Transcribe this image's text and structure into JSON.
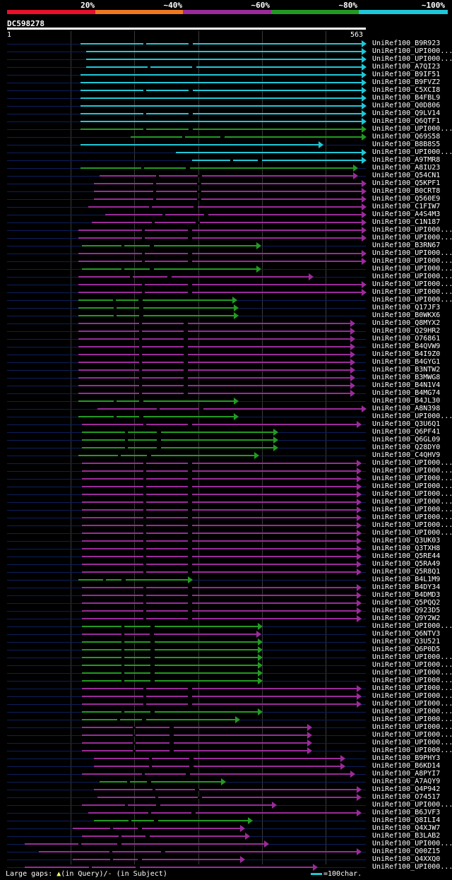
{
  "legend": {
    "labels": [
      "20%",
      "~40%",
      "~60%",
      "~80%",
      "~100%"
    ],
    "colors": [
      "#e8102a",
      "#f07820",
      "#9b2b9b",
      "#229b22",
      "#1ec8d8"
    ]
  },
  "query": {
    "name": "DC598278",
    "start": "1",
    "end": "563",
    "length": 563
  },
  "footer": {
    "text": "Large gaps:",
    "in_query": "(in Query)/",
    "in_subject": "(in Subject)",
    "scale": "=100char."
  },
  "hits": [
    {
      "label": "UniRef100_B9R923",
      "start": 115,
      "end": 563,
      "color": "#1ec8d8"
    },
    {
      "label": "UniRef100_UPI000...",
      "start": 124,
      "end": 563,
      "color": "#1ec8d8"
    },
    {
      "label": "UniRef100_UPI000...",
      "start": 124,
      "end": 563,
      "color": "#1ec8d8"
    },
    {
      "label": "UniRef100_A7QI23",
      "start": 124,
      "end": 563,
      "color": "#1ec8d8"
    },
    {
      "label": "UniRef100_B9IF51",
      "start": 115,
      "end": 563,
      "color": "#1ec8d8"
    },
    {
      "label": "UniRef100_B9FVZ2",
      "start": 115,
      "end": 563,
      "color": "#1ec8d8"
    },
    {
      "label": "UniRef100_C5XCI8",
      "start": 115,
      "end": 563,
      "color": "#1ec8d8"
    },
    {
      "label": "UniRef100_B4FBL9",
      "start": 115,
      "end": 563,
      "color": "#1ec8d8"
    },
    {
      "label": "UniRef100_Q0D806",
      "start": 115,
      "end": 563,
      "color": "#1ec8d8"
    },
    {
      "label": "UniRef100_Q9LV14",
      "start": 115,
      "end": 563,
      "color": "#1ec8d8"
    },
    {
      "label": "UniRef100_Q6QTF1",
      "start": 115,
      "end": 563,
      "color": "#1ec8d8"
    },
    {
      "label": "UniRef100_UPI000...",
      "start": 115,
      "end": 563,
      "color": "#229b22"
    },
    {
      "label": "UniRef100_Q69S58",
      "start": 194,
      "end": 563,
      "color": "#229b22"
    },
    {
      "label": "UniRef100_B8B8S5",
      "start": 115,
      "end": 495,
      "color": "#1ec8d8"
    },
    {
      "label": "UniRef100_UPI000...",
      "start": 265,
      "end": 563,
      "color": "#1ec8d8"
    },
    {
      "label": "UniRef100_A9TMR8",
      "start": 290,
      "end": 563,
      "color": "#1ec8d8"
    },
    {
      "label": "UniRef100_A8IU23",
      "start": 115,
      "end": 550,
      "color": "#229b22"
    },
    {
      "label": "UniRef100_Q54CN1",
      "start": 145,
      "end": 550,
      "color": "#9b2b9b"
    },
    {
      "label": "UniRef100_Q5KPF1",
      "start": 136,
      "end": 563,
      "color": "#9b2b9b"
    },
    {
      "label": "UniRef100_B0CRT8",
      "start": 136,
      "end": 563,
      "color": "#9b2b9b"
    },
    {
      "label": "UniRef100_Q560E9",
      "start": 136,
      "end": 563,
      "color": "#9b2b9b"
    },
    {
      "label": "UniRef100_C1FIW7",
      "start": 127,
      "end": 563,
      "color": "#9b2b9b"
    },
    {
      "label": "UniRef100_A4S4M3",
      "start": 154,
      "end": 563,
      "color": "#9b2b9b"
    },
    {
      "label": "UniRef100_C1N187",
      "start": 133,
      "end": 563,
      "color": "#9b2b9b"
    },
    {
      "label": "UniRef100_UPI000...",
      "start": 112,
      "end": 563,
      "color": "#9b2b9b"
    },
    {
      "label": "UniRef100_UPI000...",
      "start": 112,
      "end": 563,
      "color": "#9b2b9b"
    },
    {
      "label": "UniRef100_B3RN67",
      "start": 118,
      "end": 398,
      "color": "#229b22"
    },
    {
      "label": "UniRef100_UPI000...",
      "start": 112,
      "end": 563,
      "color": "#9b2b9b"
    },
    {
      "label": "UniRef100_UPI000...",
      "start": 112,
      "end": 563,
      "color": "#9b2b9b"
    },
    {
      "label": "UniRef100_UPI000...",
      "start": 118,
      "end": 398,
      "color": "#229b22"
    },
    {
      "label": "UniRef100_UPI000...",
      "start": 112,
      "end": 480,
      "color": "#9b2b9b"
    },
    {
      "label": "UniRef100_UPI000...",
      "start": 112,
      "end": 563,
      "color": "#9b2b9b"
    },
    {
      "label": "UniRef100_UPI000...",
      "start": 112,
      "end": 563,
      "color": "#9b2b9b"
    },
    {
      "label": "UniRef100_UPI000...",
      "start": 112,
      "end": 360,
      "color": "#229b22"
    },
    {
      "label": "UniRef100_Q17JF3",
      "start": 112,
      "end": 362,
      "color": "#229b22"
    },
    {
      "label": "UniRef100_B0WKX6",
      "start": 112,
      "end": 362,
      "color": "#229b22"
    },
    {
      "label": "UniRef100_Q8MYX2",
      "start": 112,
      "end": 545,
      "color": "#9b2b9b"
    },
    {
      "label": "UniRef100_Q29HR2",
      "start": 112,
      "end": 545,
      "color": "#9b2b9b"
    },
    {
      "label": "UniRef100_O76861",
      "start": 112,
      "end": 545,
      "color": "#9b2b9b"
    },
    {
      "label": "UniRef100_B4QVW9",
      "start": 112,
      "end": 545,
      "color": "#9b2b9b"
    },
    {
      "label": "UniRef100_B4I9Z0",
      "start": 112,
      "end": 545,
      "color": "#9b2b9b"
    },
    {
      "label": "UniRef100_B4GYG1",
      "start": 112,
      "end": 545,
      "color": "#9b2b9b"
    },
    {
      "label": "UniRef100_B3NTW2",
      "start": 112,
      "end": 545,
      "color": "#9b2b9b"
    },
    {
      "label": "UniRef100_B3MWG8",
      "start": 112,
      "end": 545,
      "color": "#9b2b9b"
    },
    {
      "label": "UniRef100_B4N1V4",
      "start": 112,
      "end": 545,
      "color": "#9b2b9b"
    },
    {
      "label": "UniRef100_B4MG74",
      "start": 112,
      "end": 545,
      "color": "#9b2b9b"
    },
    {
      "label": "UniRef100_B4JL30",
      "start": 112,
      "end": 362,
      "color": "#229b22"
    },
    {
      "label": "UniRef100_A8N398",
      "start": 142,
      "end": 563,
      "color": "#9b2b9b"
    },
    {
      "label": "UniRef100_UPI000...",
      "start": 112,
      "end": 362,
      "color": "#229b22"
    },
    {
      "label": "UniRef100_Q3U6Q1",
      "start": 118,
      "end": 555,
      "color": "#9b2b9b"
    },
    {
      "label": "UniRef100_Q6PF41",
      "start": 118,
      "end": 425,
      "color": "#229b22"
    },
    {
      "label": "UniRef100_Q6GL09",
      "start": 118,
      "end": 425,
      "color": "#229b22"
    },
    {
      "label": "UniRef100_Q28DY0",
      "start": 118,
      "end": 425,
      "color": "#229b22"
    },
    {
      "label": "UniRef100_C4QHV9",
      "start": 112,
      "end": 395,
      "color": "#229b22"
    },
    {
      "label": "UniRef100_UPI000...",
      "start": 118,
      "end": 555,
      "color": "#9b2b9b"
    },
    {
      "label": "UniRef100_UPI000...",
      "start": 118,
      "end": 555,
      "color": "#9b2b9b"
    },
    {
      "label": "UniRef100_UPI000...",
      "start": 118,
      "end": 555,
      "color": "#9b2b9b"
    },
    {
      "label": "UniRef100_UPI000...",
      "start": 118,
      "end": 555,
      "color": "#9b2b9b"
    },
    {
      "label": "UniRef100_UPI000...",
      "start": 118,
      "end": 555,
      "color": "#9b2b9b"
    },
    {
      "label": "UniRef100_UPI000...",
      "start": 118,
      "end": 555,
      "color": "#9b2b9b"
    },
    {
      "label": "UniRef100_UPI000...",
      "start": 118,
      "end": 555,
      "color": "#9b2b9b"
    },
    {
      "label": "UniRef100_UPI000...",
      "start": 118,
      "end": 555,
      "color": "#9b2b9b"
    },
    {
      "label": "UniRef100_UPI000...",
      "start": 118,
      "end": 555,
      "color": "#9b2b9b"
    },
    {
      "label": "UniRef100_UPI000...",
      "start": 118,
      "end": 555,
      "color": "#9b2b9b"
    },
    {
      "label": "UniRef100_Q3UK03",
      "start": 118,
      "end": 555,
      "color": "#9b2b9b"
    },
    {
      "label": "UniRef100_Q3TXH8",
      "start": 118,
      "end": 555,
      "color": "#9b2b9b"
    },
    {
      "label": "UniRef100_Q5RE44",
      "start": 118,
      "end": 555,
      "color": "#9b2b9b"
    },
    {
      "label": "UniRef100_Q5RA49",
      "start": 118,
      "end": 555,
      "color": "#9b2b9b"
    },
    {
      "label": "UniRef100_Q5R8Q1",
      "start": 118,
      "end": 555,
      "color": "#9b2b9b"
    },
    {
      "label": "UniRef100_B4L1M9",
      "start": 112,
      "end": 290,
      "color": "#229b22"
    },
    {
      "label": "UniRef100_B4DY34",
      "start": 118,
      "end": 555,
      "color": "#9b2b9b"
    },
    {
      "label": "UniRef100_B4DMD3",
      "start": 118,
      "end": 555,
      "color": "#9b2b9b"
    },
    {
      "label": "UniRef100_Q5PQQ2",
      "start": 118,
      "end": 555,
      "color": "#9b2b9b"
    },
    {
      "label": "UniRef100_Q923D5",
      "start": 118,
      "end": 555,
      "color": "#9b2b9b"
    },
    {
      "label": "UniRef100_Q9Y2W2",
      "start": 118,
      "end": 555,
      "color": "#9b2b9b"
    },
    {
      "label": "UniRef100_UPI000...",
      "start": 118,
      "end": 400,
      "color": "#229b22"
    },
    {
      "label": "UniRef100_Q6NTV3",
      "start": 118,
      "end": 398,
      "color": "#9b2b9b"
    },
    {
      "label": "UniRef100_Q3U521",
      "start": 118,
      "end": 400,
      "color": "#229b22"
    },
    {
      "label": "UniRef100_Q6P0D5",
      "start": 118,
      "end": 400,
      "color": "#229b22"
    },
    {
      "label": "UniRef100_UPI000...",
      "start": 118,
      "end": 400,
      "color": "#229b22"
    },
    {
      "label": "UniRef100_UPI000...",
      "start": 118,
      "end": 400,
      "color": "#229b22"
    },
    {
      "label": "UniRef100_UPI000...",
      "start": 118,
      "end": 400,
      "color": "#229b22"
    },
    {
      "label": "UniRef100_UPI000...",
      "start": 118,
      "end": 400,
      "color": "#229b22"
    },
    {
      "label": "UniRef100_UPI000...",
      "start": 118,
      "end": 555,
      "color": "#9b2b9b"
    },
    {
      "label": "UniRef100_UPI000...",
      "start": 118,
      "end": 555,
      "color": "#9b2b9b"
    },
    {
      "label": "UniRef100_UPI000...",
      "start": 118,
      "end": 555,
      "color": "#9b2b9b"
    },
    {
      "label": "UniRef100_UPI000...",
      "start": 118,
      "end": 400,
      "color": "#229b22"
    },
    {
      "label": "UniRef100_UPI000...",
      "start": 118,
      "end": 365,
      "color": "#229b22"
    },
    {
      "label": "UniRef100_UPI000...",
      "start": 118,
      "end": 478,
      "color": "#9b2b9b"
    },
    {
      "label": "UniRef100_UPI000...",
      "start": 118,
      "end": 478,
      "color": "#9b2b9b"
    },
    {
      "label": "UniRef100_UPI000...",
      "start": 118,
      "end": 478,
      "color": "#9b2b9b"
    },
    {
      "label": "UniRef100_UPI000...",
      "start": 118,
      "end": 478,
      "color": "#9b2b9b"
    },
    {
      "label": "UniRef100_B9PHY3",
      "start": 136,
      "end": 530,
      "color": "#9b2b9b"
    },
    {
      "label": "UniRef100_B6KD14",
      "start": 136,
      "end": 530,
      "color": "#9b2b9b"
    },
    {
      "label": "UniRef100_A8PYI7",
      "start": 118,
      "end": 545,
      "color": "#9b2b9b"
    },
    {
      "label": "UniRef100_A7AQY9",
      "start": 145,
      "end": 342,
      "color": "#229b22"
    },
    {
      "label": "UniRef100_Q4P942",
      "start": 136,
      "end": 555,
      "color": "#9b2b9b"
    },
    {
      "label": "UniRef100_O74517",
      "start": 142,
      "end": 555,
      "color": "#9b2b9b"
    },
    {
      "label": "UniRef100_UPI000...",
      "start": 118,
      "end": 422,
      "color": "#9b2b9b"
    },
    {
      "label": "UniRef100_B6JVF3",
      "start": 127,
      "end": 555,
      "color": "#9b2b9b"
    },
    {
      "label": "UniRef100_Q8ILI4",
      "start": 136,
      "end": 385,
      "color": "#229b22"
    },
    {
      "label": "UniRef100_Q4XJW7",
      "start": 103,
      "end": 372,
      "color": "#9b2b9b"
    },
    {
      "label": "UniRef100_B3LAB2",
      "start": 118,
      "end": 380,
      "color": "#9b2b9b"
    },
    {
      "label": "UniRef100_UPI000...",
      "start": 28,
      "end": 410,
      "color": "#9b2b9b"
    },
    {
      "label": "UniRef100_Q00Z15",
      "start": 50,
      "end": 555,
      "color": "#9b2b9b"
    },
    {
      "label": "UniRef100_Q4XXQ0",
      "start": 103,
      "end": 372,
      "color": "#9b2b9b"
    },
    {
      "label": "UniRef100_UPI000...",
      "start": 28,
      "end": 486,
      "color": "#9b2b9b"
    }
  ]
}
